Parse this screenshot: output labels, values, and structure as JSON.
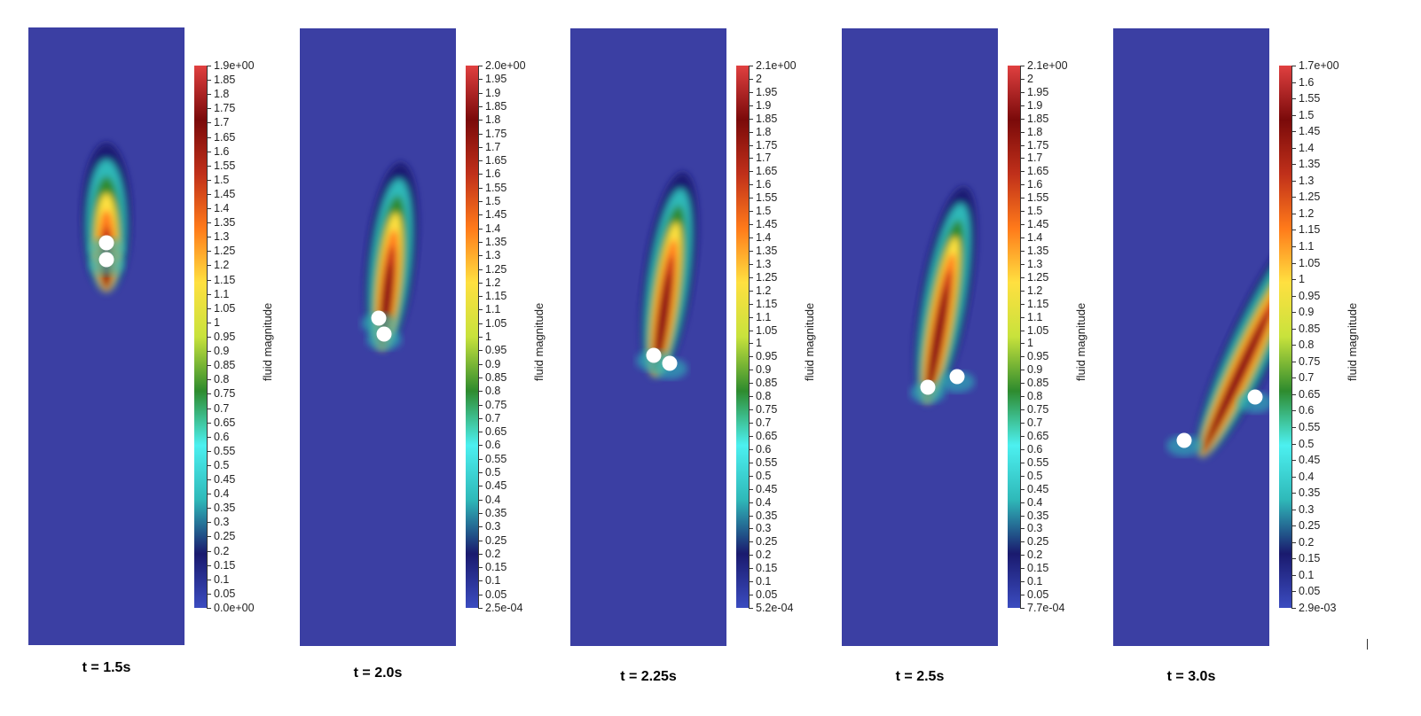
{
  "colors": {
    "background": "#3b3fa3",
    "colormap": [
      "#3b4cc0",
      "#1a1a6e",
      "#2fb9b9",
      "#4cf0f0",
      "#2e8b2e",
      "#c8e23c",
      "#ffe040",
      "#ff7a1a",
      "#c0301a",
      "#7a0a0a",
      "#e04040"
    ],
    "particle": "#ffffff"
  },
  "colorbar_title": "fluid magnitude",
  "panels": [
    {
      "caption": "t = 1.5s",
      "max_label": "1.9e+00",
      "min_label": "0.0e+00",
      "ticks": [
        "1.85",
        "1.8",
        "1.75",
        "1.7",
        "1.65",
        "1.6",
        "1.55",
        "1.5",
        "1.45",
        "1.4",
        "1.35",
        "1.3",
        "1.25",
        "1.2",
        "1.15",
        "1.1",
        "1.05",
        "1",
        "0.95",
        "0.9",
        "0.85",
        "0.8",
        "0.75",
        "0.7",
        "0.65",
        "0.6",
        "0.55",
        "0.5",
        "0.45",
        "0.4",
        "0.35",
        "0.3",
        "0.25",
        "0.2",
        "0.15",
        "0.1",
        "0.05"
      ]
    },
    {
      "caption": "t = 2.0s",
      "max_label": "2.0e+00",
      "min_label": "2.5e-04",
      "ticks": [
        "1.95",
        "1.9",
        "1.85",
        "1.8",
        "1.75",
        "1.7",
        "1.65",
        "1.6",
        "1.55",
        "1.5",
        "1.45",
        "1.4",
        "1.35",
        "1.3",
        "1.25",
        "1.2",
        "1.15",
        "1.1",
        "1.05",
        "1",
        "0.95",
        "0.9",
        "0.85",
        "0.8",
        "0.75",
        "0.7",
        "0.65",
        "0.6",
        "0.55",
        "0.5",
        "0.45",
        "0.4",
        "0.35",
        "0.3",
        "0.25",
        "0.2",
        "0.15",
        "0.1",
        "0.05"
      ]
    },
    {
      "caption": "t = 2.25s",
      "max_label": "2.1e+00",
      "min_label": "5.2e-04",
      "ticks": [
        "2",
        "1.95",
        "1.9",
        "1.85",
        "1.8",
        "1.75",
        "1.7",
        "1.65",
        "1.6",
        "1.55",
        "1.5",
        "1.45",
        "1.4",
        "1.35",
        "1.3",
        "1.25",
        "1.2",
        "1.15",
        "1.1",
        "1.05",
        "1",
        "0.95",
        "0.9",
        "0.85",
        "0.8",
        "0.75",
        "0.7",
        "0.65",
        "0.6",
        "0.55",
        "0.5",
        "0.45",
        "0.4",
        "0.35",
        "0.3",
        "0.25",
        "0.2",
        "0.15",
        "0.1",
        "0.05"
      ]
    },
    {
      "caption": "t = 2.5s",
      "max_label": "2.1e+00",
      "min_label": "7.7e-04",
      "ticks": [
        "2",
        "1.95",
        "1.9",
        "1.85",
        "1.8",
        "1.75",
        "1.7",
        "1.65",
        "1.6",
        "1.55",
        "1.5",
        "1.45",
        "1.4",
        "1.35",
        "1.3",
        "1.25",
        "1.2",
        "1.15",
        "1.1",
        "1.05",
        "1",
        "0.95",
        "0.9",
        "0.85",
        "0.8",
        "0.75",
        "0.7",
        "0.65",
        "0.6",
        "0.55",
        "0.5",
        "0.45",
        "0.4",
        "0.35",
        "0.3",
        "0.25",
        "0.2",
        "0.15",
        "0.1",
        "0.05"
      ]
    },
    {
      "caption": "t = 3.0s",
      "max_label": "1.7e+00",
      "min_label": "2.9e-03",
      "ticks": [
        "1.6",
        "1.55",
        "1.5",
        "1.45",
        "1.4",
        "1.35",
        "1.3",
        "1.25",
        "1.2",
        "1.15",
        "1.1",
        "1.05",
        "1",
        "0.95",
        "0.9",
        "0.85",
        "0.8",
        "0.75",
        "0.7",
        "0.65",
        "0.6",
        "0.55",
        "0.5",
        "0.45",
        "0.4",
        "0.35",
        "0.3",
        "0.25",
        "0.2",
        "0.15",
        "0.1",
        "0.05"
      ]
    }
  ]
}
